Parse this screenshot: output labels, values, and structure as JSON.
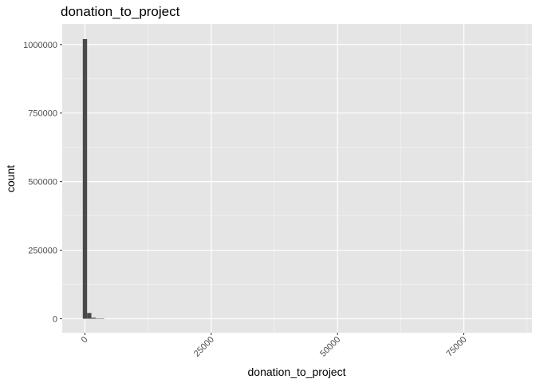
{
  "chart_data": {
    "type": "bar",
    "title": "donation_to_project",
    "xlabel": "donation_to_project",
    "ylabel": "count",
    "xlim": [
      -4500,
      88500
    ],
    "ylim": [
      -51000,
      1075000
    ],
    "x_ticks": [
      0,
      25000,
      50000,
      75000
    ],
    "x_tick_labels": [
      "0",
      "25000",
      "50000",
      "75000"
    ],
    "y_ticks": [
      0,
      250000,
      500000,
      750000,
      1000000
    ],
    "y_tick_labels": [
      "0",
      "250000",
      "500000",
      "750000",
      "1000000"
    ],
    "x_tick_rotation": "45",
    "grid": true,
    "bin_width": 850,
    "bins": [
      {
        "x0": -425,
        "x1": 425,
        "count": 1020000
      },
      {
        "x0": 425,
        "x1": 1275,
        "count": 21000
      },
      {
        "x0": 1275,
        "x1": 2125,
        "count": 4000
      },
      {
        "x0": 2125,
        "x1": 2975,
        "count": 1500
      },
      {
        "x0": 2975,
        "x1": 3825,
        "count": 700
      }
    ],
    "colors": {
      "panel": "#e5e5e5",
      "grid_major": "#ffffff",
      "grid_minor": "#f2f2f2",
      "bar": "#4a4a4a",
      "tick": "#333333",
      "tick_text": "#4d4d4d"
    }
  }
}
